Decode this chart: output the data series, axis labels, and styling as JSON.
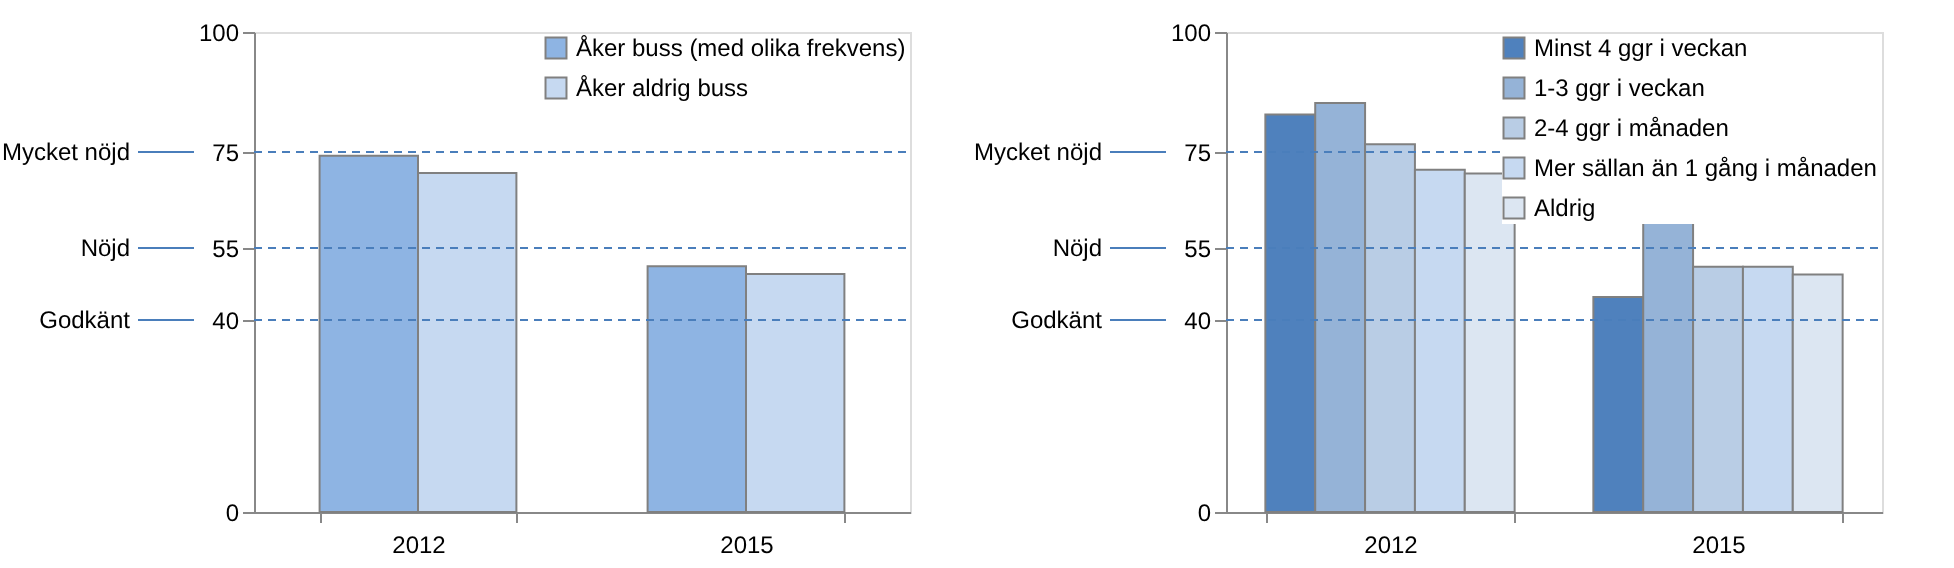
{
  "chart_data": [
    {
      "type": "bar",
      "categories": [
        "2012",
        "2015"
      ],
      "ylim": [
        0,
        100
      ],
      "yticks": [
        0,
        40,
        55,
        75,
        100
      ],
      "grid": false,
      "legend": "top right",
      "series": [
        {
          "name": "Åker buss (med olika frekvens)",
          "color": "#8eb4e3",
          "values": [
            74.2,
            51.2
          ]
        },
        {
          "name": "Åker aldrig buss",
          "color": "#c6d9f1",
          "values": [
            70.6,
            49.6
          ]
        }
      ],
      "ref_lines": [
        {
          "axis": "y",
          "value": 75,
          "label": "Mycket nöjd",
          "color": "#4a7ebb",
          "line_style": "dashed"
        },
        {
          "axis": "y",
          "value": 55,
          "label": "Nöjd",
          "color": "#4a7ebb",
          "line_style": "dashed"
        },
        {
          "axis": "y",
          "value": 40,
          "label": "Godkänt",
          "color": "#4a7ebb",
          "line_style": "dashed"
        }
      ]
    },
    {
      "type": "bar",
      "categories": [
        "2012",
        "2015"
      ],
      "ylim": [
        0,
        100
      ],
      "yticks": [
        0,
        40,
        55,
        75,
        100
      ],
      "grid": false,
      "legend": "top right",
      "series": [
        {
          "name": "Minst 4 ggr i veckan",
          "color": "#4f81bd",
          "values": [
            82.8,
            44.8
          ]
        },
        {
          "name": "1-3 ggr i veckan",
          "color": "#95b3d7",
          "values": [
            85.2,
            60.2
          ]
        },
        {
          "name": "2-4 ggr i månaden",
          "color": "#b9cde5",
          "values": [
            76.6,
            51.1
          ]
        },
        {
          "name": "Mer sällan än 1 gång i månaden",
          "color": "#c6d9f1",
          "values": [
            71.3,
            51.1
          ]
        },
        {
          "name": "Aldrig",
          "color": "#dce6f2",
          "values": [
            70.5,
            49.5
          ]
        }
      ],
      "ref_lines": [
        {
          "axis": "y",
          "value": 75,
          "label": "Mycket nöjd",
          "color": "#4a7ebb",
          "line_style": "dashed"
        },
        {
          "axis": "y",
          "value": 55,
          "label": "Nöjd",
          "color": "#4a7ebb",
          "line_style": "dashed"
        },
        {
          "axis": "y",
          "value": 40,
          "label": "Godkänt",
          "color": "#4a7ebb",
          "line_style": "dashed"
        }
      ]
    }
  ]
}
